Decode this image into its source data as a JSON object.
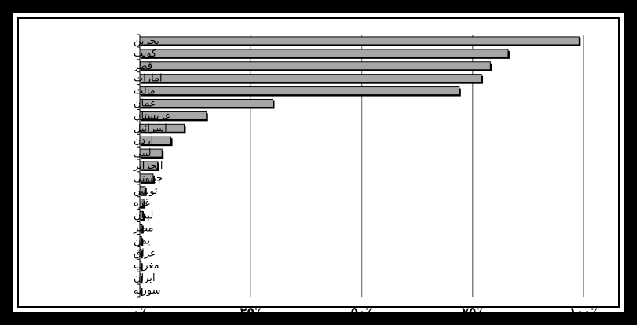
{
  "chart_data": {
    "type": "bar",
    "orientation": "horizontal",
    "categories": [
      "بحرين",
      "كويت",
      "قطر",
      "امارات",
      "مالت",
      "عمان",
      "عربستان",
      "اسرائيل",
      "اردن",
      "ليبى",
      "الجزاير",
      "جيبوتى",
      "تونس",
      "غزه",
      "لبنان",
      "مصر",
      "يمن",
      "عراق",
      "مغرب",
      "ايران",
      "سوريه"
    ],
    "values": [
      99,
      83,
      79,
      77,
      72,
      30,
      15,
      10,
      7,
      5,
      4,
      3,
      1.2,
      0.9,
      0.8,
      0.5,
      0.4,
      0.3,
      0.3,
      0.2,
      0.2
    ],
    "xlim": [
      0,
      100
    ],
    "xticks": [
      0,
      25,
      50,
      75,
      100
    ],
    "xtick_labels": [
      "۰٪",
      "۲۵٪",
      "۵۰٪",
      "۷۵٪",
      "۱۰۰٪"
    ],
    "grid": true,
    "bar_color": "#a6a6a6",
    "title": "",
    "xlabel": "",
    "ylabel": ""
  }
}
